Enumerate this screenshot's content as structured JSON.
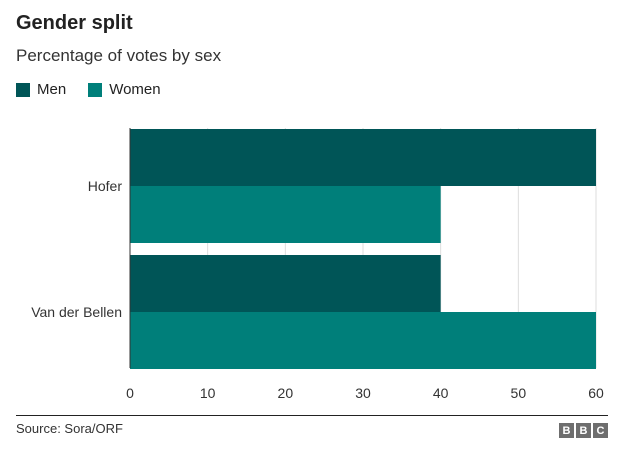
{
  "header": {
    "title": "Gender split",
    "subtitle": "Percentage of votes by sex"
  },
  "legend": [
    {
      "label": "Men",
      "color": "#005557"
    },
    {
      "label": "Women",
      "color": "#007f7a"
    }
  ],
  "footer": {
    "source": "Source: Sora/ORF",
    "logo": [
      "B",
      "B",
      "C"
    ]
  },
  "chart_data": {
    "type": "bar",
    "orientation": "horizontal",
    "categories": [
      "Hofer",
      "Van der Bellen"
    ],
    "series": [
      {
        "name": "Men",
        "values": [
          60,
          40
        ],
        "color": "#005557"
      },
      {
        "name": "Women",
        "values": [
          40,
          60
        ],
        "color": "#007f7a"
      }
    ],
    "xlim": [
      0,
      60
    ],
    "xticks": [
      0,
      10,
      20,
      30,
      40,
      50,
      60
    ],
    "grid": true,
    "legend_position": "top-left"
  }
}
